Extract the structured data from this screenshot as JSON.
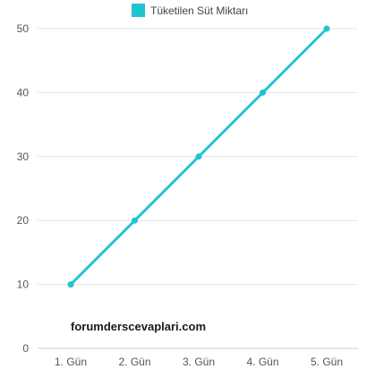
{
  "chart_data": {
    "type": "line",
    "categories": [
      "1. Gün",
      "2. Gün",
      "3. Gün",
      "4. Gün",
      "5. Gün"
    ],
    "series": [
      {
        "name": "Tüketilen Süt Miktarı",
        "values": [
          10,
          20,
          30,
          40,
          50
        ],
        "color": "#20c4d0"
      }
    ],
    "ylim": [
      0,
      50
    ],
    "yticks": [
      0,
      10,
      20,
      30,
      40,
      50
    ],
    "grid": true,
    "legend_position": "top"
  },
  "watermark": "forumderscevaplari.com",
  "colors": {
    "series": "#20c4d0",
    "grid": "#e6e6e6",
    "axis_text": "#555555"
  }
}
